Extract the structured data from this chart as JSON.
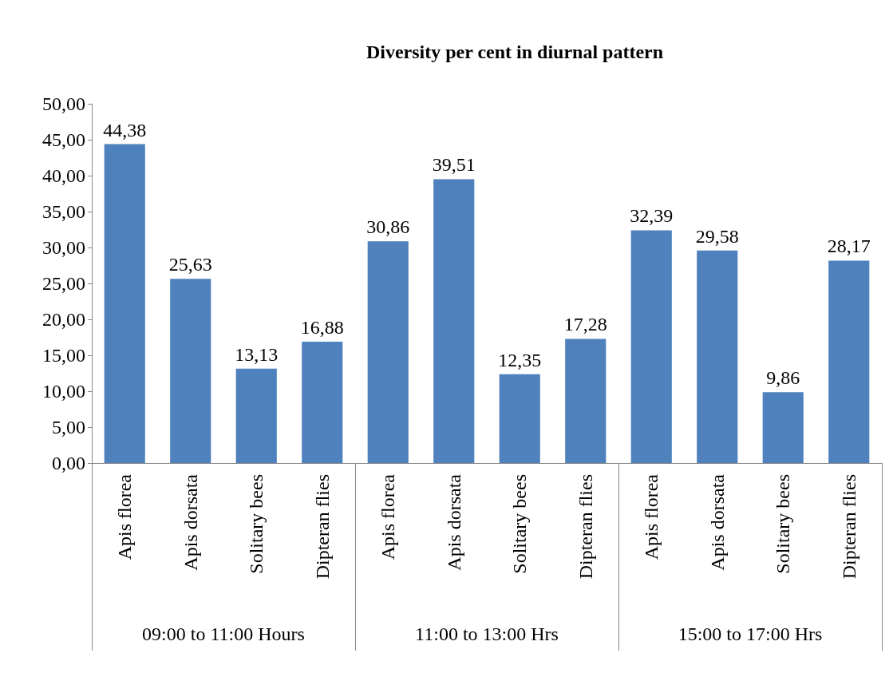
{
  "chart_data": {
    "type": "bar",
    "title": "Diversity per cent in diurnal pattern",
    "categories": [
      "Apis florea",
      "Apis dorsata",
      "Solitary bees",
      "Dipteran flies",
      "Apis florea",
      "Apis dorsata",
      "Solitary bees",
      "Dipteran flies",
      "Apis florea",
      "Apis dorsata",
      "Solitary bees",
      "Dipteran flies"
    ],
    "values": [
      44.38,
      25.63,
      13.13,
      16.88,
      30.86,
      39.51,
      12.35,
      17.28,
      32.39,
      29.58,
      9.86,
      28.17
    ],
    "value_labels": [
      "44,38",
      "25,63",
      "13,13",
      "16,88",
      "30,86",
      "39,51",
      "12,35",
      "17,28",
      "32,39",
      "29,58",
      "9,86",
      "28,17"
    ],
    "color": "#4f81bd",
    "ylim": [
      0,
      50
    ],
    "yticks": [
      {
        "value": 0,
        "label": "0,00"
      },
      {
        "value": 5,
        "label": "5,00"
      },
      {
        "value": 10,
        "label": "10,00"
      },
      {
        "value": 15,
        "label": "15,00"
      },
      {
        "value": 20,
        "label": "20,00"
      },
      {
        "value": 25,
        "label": "25,00"
      },
      {
        "value": 30,
        "label": "30,00"
      },
      {
        "value": 35,
        "label": "35,00"
      },
      {
        "value": 40,
        "label": "40,00"
      },
      {
        "value": 45,
        "label": "45,00"
      },
      {
        "value": 50,
        "label": "50,00"
      }
    ],
    "annotations": [
      "09:00 to 11:00 Hours",
      "11:00 to 13:00 Hrs",
      "15:00 to 17:00 Hrs"
    ],
    "grid": false
  }
}
